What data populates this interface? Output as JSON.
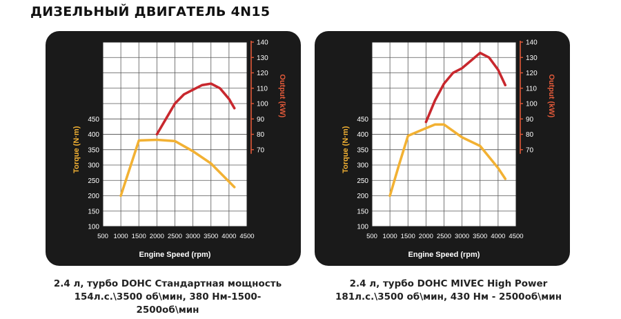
{
  "page": {
    "title": "ДИЗЕЛЬНЫЙ ДВИГАТЕЛЬ 4N15"
  },
  "colors": {
    "panel_bg": "#1a1a1a",
    "plot_bg": "#ffffff",
    "torque": "#f2b133",
    "output": "#c8282e",
    "output_axis": "#e25a3a",
    "grid": "#555555"
  },
  "chart_data": [
    {
      "type": "line",
      "xlabel": "Engine Speed (rpm)",
      "ylabel_left": "Torque (N·m)",
      "ylabel_right": "Output (kW)",
      "x_ticks": [
        500,
        1000,
        1500,
        2000,
        2500,
        3000,
        3500,
        4000,
        4500
      ],
      "y_left_ticks": [
        100,
        150,
        200,
        250,
        300,
        350,
        400,
        450
      ],
      "y_right_ticks": [
        70,
        80,
        90,
        100,
        110,
        120,
        130,
        140
      ],
      "xlim": [
        500,
        4500
      ],
      "ylim_left": [
        100,
        700
      ],
      "ylim_right": [
        20,
        140
      ],
      "grid": true,
      "series": [
        {
          "axis": "left",
          "color": "#f2b133",
          "x": [
            1000,
            1250,
            1500,
            2000,
            2500,
            3000,
            3500,
            4150
          ],
          "y": [
            200,
            290,
            380,
            382,
            378,
            345,
            305,
            228
          ]
        },
        {
          "axis": "right",
          "color": "#c8282e",
          "x": [
            2000,
            2250,
            2500,
            2750,
            3000,
            3250,
            3500,
            3750,
            4000,
            4150
          ],
          "y": [
            80,
            90,
            100,
            106,
            109,
            112,
            113,
            110,
            103,
            97
          ]
        }
      ],
      "caption": [
        "2.4 л, турбо DOHC Стандартная мощность",
        "154л.с.\\3500 об\\мин, 380 Нм-1500-",
        "2500об\\мин"
      ]
    },
    {
      "type": "line",
      "xlabel": "Engine Speed (rpm)",
      "ylabel_left": "Torque (N·m)",
      "ylabel_right": "Output (kW)",
      "x_ticks": [
        500,
        1000,
        1500,
        2000,
        2500,
        3000,
        3500,
        4000,
        4500
      ],
      "y_left_ticks": [
        100,
        150,
        200,
        250,
        300,
        350,
        400,
        450
      ],
      "y_right_ticks": [
        70,
        80,
        90,
        100,
        110,
        120,
        130,
        140
      ],
      "xlim": [
        500,
        4500
      ],
      "ylim_left": [
        100,
        700
      ],
      "ylim_right": [
        20,
        140
      ],
      "grid": true,
      "series": [
        {
          "axis": "left",
          "color": "#f2b133",
          "x": [
            1000,
            1250,
            1500,
            2000,
            2250,
            2500,
            3000,
            3500,
            4000,
            4200
          ],
          "y": [
            200,
            300,
            395,
            420,
            432,
            432,
            390,
            362,
            290,
            255
          ]
        },
        {
          "axis": "right",
          "color": "#c8282e",
          "x": [
            2000,
            2250,
            2500,
            2750,
            3000,
            3250,
            3500,
            3750,
            4000,
            4200
          ],
          "y": [
            88,
            102,
            113,
            120,
            123,
            128,
            133,
            130,
            122,
            112
          ]
        }
      ],
      "caption": [
        "2.4 л, турбо DOHC MIVEC High Power",
        "181л.с.\\3500 об\\мин, 430 Нм - 2500об\\мин"
      ]
    }
  ]
}
